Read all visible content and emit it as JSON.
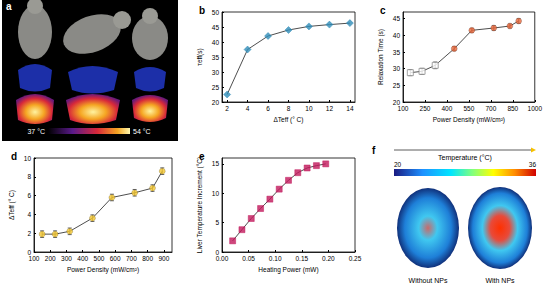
{
  "chart_data": [
    {
      "title": "b",
      "type": "line",
      "marker": "diamond",
      "color": "#2e8cb8",
      "x": [
        2,
        4,
        6,
        8,
        10,
        12,
        14
      ],
      "values": [
        22.5,
        37.5,
        42,
        44,
        45.2,
        45.8,
        46.3
      ],
      "xlabel": "ΔTeff (° C)",
      "ylabel": "τeff(s)",
      "xlim": [
        1.5,
        14.5
      ],
      "xticks": [
        2,
        4,
        6,
        8,
        10,
        12,
        14
      ],
      "ylim": [
        20,
        50
      ],
      "yticks": [
        20,
        25,
        30,
        35,
        40,
        45,
        50
      ],
      "grid": false
    },
    {
      "title": "c",
      "type": "line",
      "series": [
        {
          "color": "#8c8c8c",
          "marker": "open-square",
          "x": [
            150,
            230,
            320
          ],
          "values": [
            28.8,
            29.2,
            31
          ],
          "errors": [
            0.9,
            0.9,
            1.0
          ]
        },
        {
          "color": "#e8663a",
          "marker": "circle",
          "x": [
            450,
            570,
            720,
            830,
            890
          ],
          "values": [
            36,
            41.5,
            42.2,
            42.8,
            44.3
          ],
          "errors": [
            0.6,
            0.6,
            0.7,
            0.6,
            0.7
          ]
        }
      ],
      "xlabel": "Power Density (mW/cm²)",
      "ylabel": "Relaxation Time (s)",
      "xlim": [
        100,
        1000
      ],
      "xticks": [
        100,
        250,
        400,
        550,
        700,
        850,
        1000
      ],
      "ylim": [
        20,
        47
      ],
      "yticks": [
        20,
        25,
        30,
        35,
        40,
        45
      ],
      "grid": false
    },
    {
      "title": "d",
      "type": "line",
      "marker": "circle",
      "color": "#f2c530",
      "x": [
        150,
        230,
        320,
        460,
        580,
        720,
        830,
        890
      ],
      "values": [
        1.9,
        1.9,
        2.2,
        3.6,
        5.8,
        6.3,
        6.8,
        8.6
      ],
      "errors": [
        0.35,
        0.35,
        0.35,
        0.35,
        0.35,
        0.35,
        0.35,
        0.35
      ],
      "xlabel": "Power Density (mW/cm²)",
      "ylabel": "ΔTeff (° C)",
      "xlim": [
        100,
        950
      ],
      "xticks": [
        100,
        200,
        300,
        400,
        500,
        600,
        700,
        800,
        900
      ],
      "ylim": [
        0,
        10
      ],
      "yticks": [
        0,
        2,
        4,
        6,
        8,
        10
      ],
      "grid": false
    },
    {
      "title": "e",
      "type": "line",
      "marker": "square",
      "color": "#c2185b",
      "x": [
        0.02,
        0.0375,
        0.055,
        0.0725,
        0.09,
        0.1075,
        0.125,
        0.1425,
        0.16,
        0.1775,
        0.195
      ],
      "values": [
        1.9,
        3.8,
        5.7,
        7.4,
        9.0,
        10.7,
        12.2,
        13.5,
        14.3,
        14.7,
        15.0
      ],
      "xlabel": "Heating Power (mW)",
      "ylabel": "Liver Temperature Increment (°C)",
      "xlim": [
        0,
        0.25
      ],
      "xticks": [
        {
          "value": 0,
          "label": "0.00"
        },
        {
          "value": 0.05,
          "label": "0.05"
        },
        {
          "value": 0.1,
          "label": "0.10"
        },
        {
          "value": 0.15,
          "label": "0.15"
        },
        {
          "value": 0.2,
          "label": "0.20"
        },
        {
          "value": 0.25,
          "label": "0.25"
        }
      ],
      "ylim": [
        0,
        16
      ],
      "yticks": [
        0,
        5,
        10,
        15
      ],
      "grid": false
    }
  ],
  "images": [
    {
      "title": "a",
      "colorbar": {
        "range": [
          37,
          54
        ],
        "ticks": [
          {
            "value": 37,
            "label": "37 °C"
          },
          {
            "value": 54,
            "label": "54 °C"
          }
        ]
      }
    },
    {
      "title": "f",
      "colorbar": {
        "title": "Temperature (°C)",
        "range": [
          20,
          36
        ],
        "ticks": [
          20,
          36
        ]
      },
      "captions": [
        "Without NPs",
        "With NPs"
      ]
    }
  ]
}
